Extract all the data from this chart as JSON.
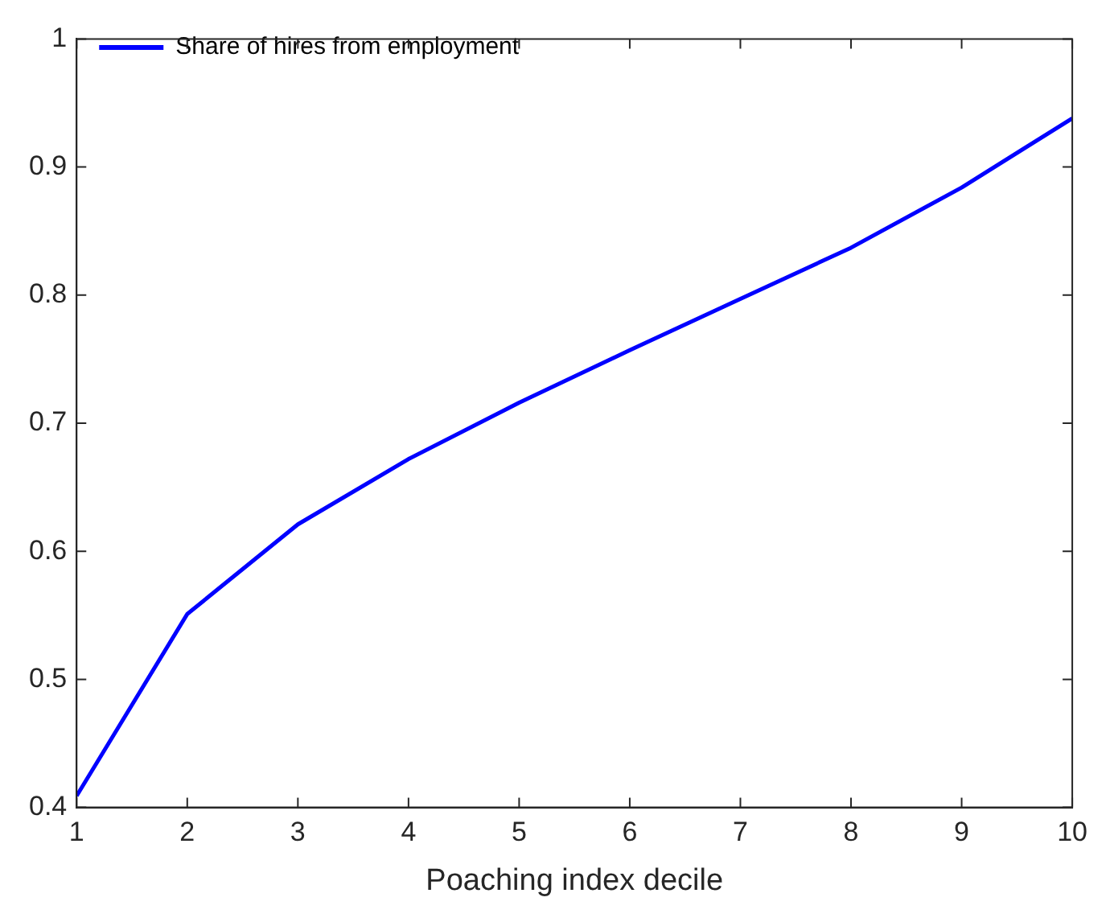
{
  "chart_data": {
    "type": "line",
    "xlabel": "Poaching index decile",
    "x": [
      1,
      2,
      3,
      4,
      5,
      6,
      7,
      8,
      9,
      10
    ],
    "series": [
      {
        "name": "Share of hires from employment",
        "color": "#0000ff",
        "values": [
          0.409,
          0.551,
          0.621,
          0.672,
          0.716,
          0.757,
          0.797,
          0.837,
          0.884,
          0.938
        ]
      }
    ],
    "xlim": [
      1,
      10
    ],
    "xticks": [
      1,
      2,
      3,
      4,
      5,
      6,
      7,
      8,
      9,
      10
    ],
    "ylim": [
      0.4,
      1
    ],
    "yticks": [
      0.4,
      0.5,
      0.6,
      0.7,
      0.8,
      0.9,
      1
    ],
    "legend": "top left",
    "grid": false,
    "marker": "none",
    "line_style": "solid"
  }
}
